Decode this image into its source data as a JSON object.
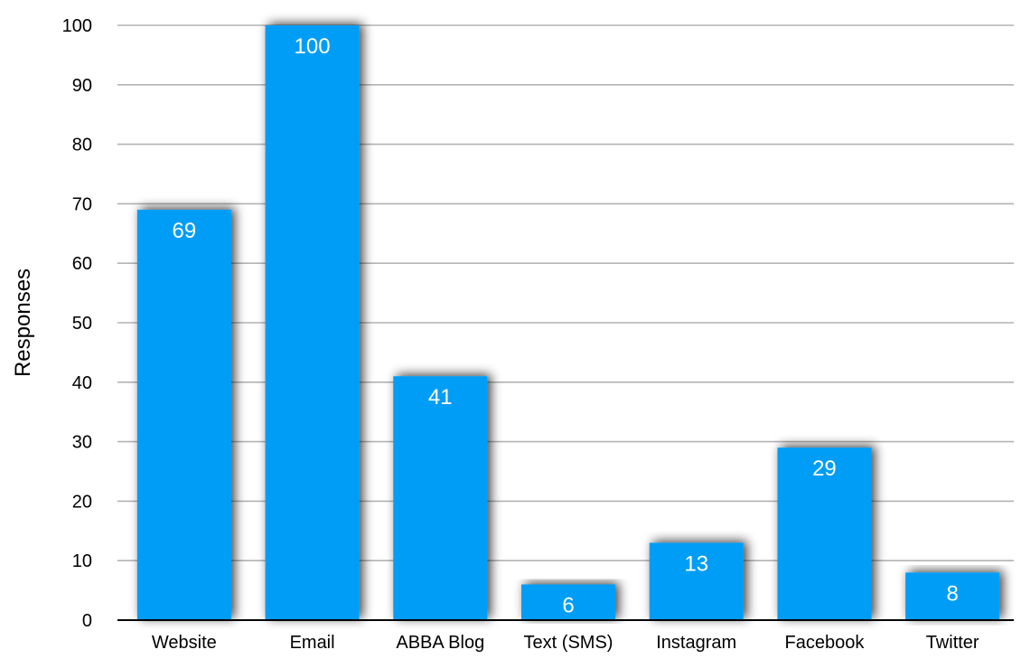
{
  "chart_data": {
    "type": "bar",
    "title": "",
    "xlabel": "",
    "ylabel": "Responses",
    "ylim": [
      0,
      100
    ],
    "ytick_step": 10,
    "grid": true,
    "legend": "none",
    "categories": [
      "Website",
      "Email",
      "ABBA Blog",
      "Text (SMS)",
      "Instagram",
      "Facebook",
      "Twitter"
    ],
    "values": [
      69,
      100,
      41,
      6,
      13,
      29,
      8
    ],
    "data_labels": [
      "69",
      "100",
      "41",
      "6",
      "13",
      "29",
      "8"
    ],
    "colors": {
      "bar": "#009DF7",
      "grid": "#B3B3B3",
      "axis": "#000000",
      "label_inside": "#FFFFFF",
      "text": "#000000"
    }
  }
}
